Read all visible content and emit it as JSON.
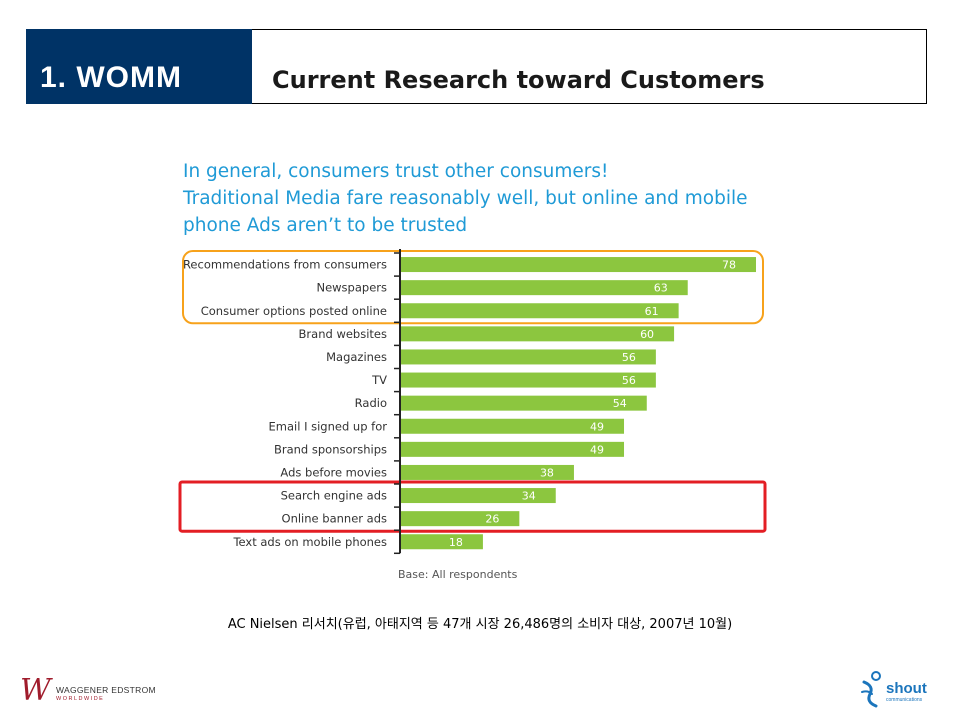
{
  "header": {
    "section": "1. WOMM",
    "title": "Current Research toward Customers"
  },
  "headline": {
    "line1": "In general, consumers trust other consumers!",
    "line2": "Traditional Media fare reasonably well, but online and mobile",
    "line3": "phone Ads aren’t to be trusted"
  },
  "chart_data": {
    "type": "bar",
    "orientation": "horizontal",
    "categories": [
      "Recommendations from consumers",
      "Newspapers",
      "Consumer options posted online",
      "Brand websites",
      "Magazines",
      "TV",
      "Radio",
      "Email I signed up for",
      "Brand sponsorships",
      "Ads before movies",
      "Search engine ads",
      "Online banner ads",
      "Text ads on mobile phones"
    ],
    "values": [
      78,
      63,
      61,
      60,
      56,
      56,
      54,
      49,
      49,
      38,
      34,
      26,
      18
    ],
    "xlim": [
      0,
      80
    ],
    "bar_color": "#8cc63f",
    "highlights": [
      {
        "from": 0,
        "to": 2,
        "color": "#f7a21b"
      },
      {
        "from": 10,
        "to": 11,
        "color": "#e31e24"
      }
    ],
    "grid": false,
    "legend": "none"
  },
  "notes": {
    "base": "Base: All respondents",
    "source": "AC Nielsen 리서치(유럽, 아태지역 등 47개 시장 26,486명의 소비자 대상, 2007년 10월)"
  },
  "logos": {
    "left_name": "WAGGENER EDSTROM",
    "left_sub": "WORLDWIDE",
    "right_name": "shout",
    "right_sub": "communications"
  }
}
